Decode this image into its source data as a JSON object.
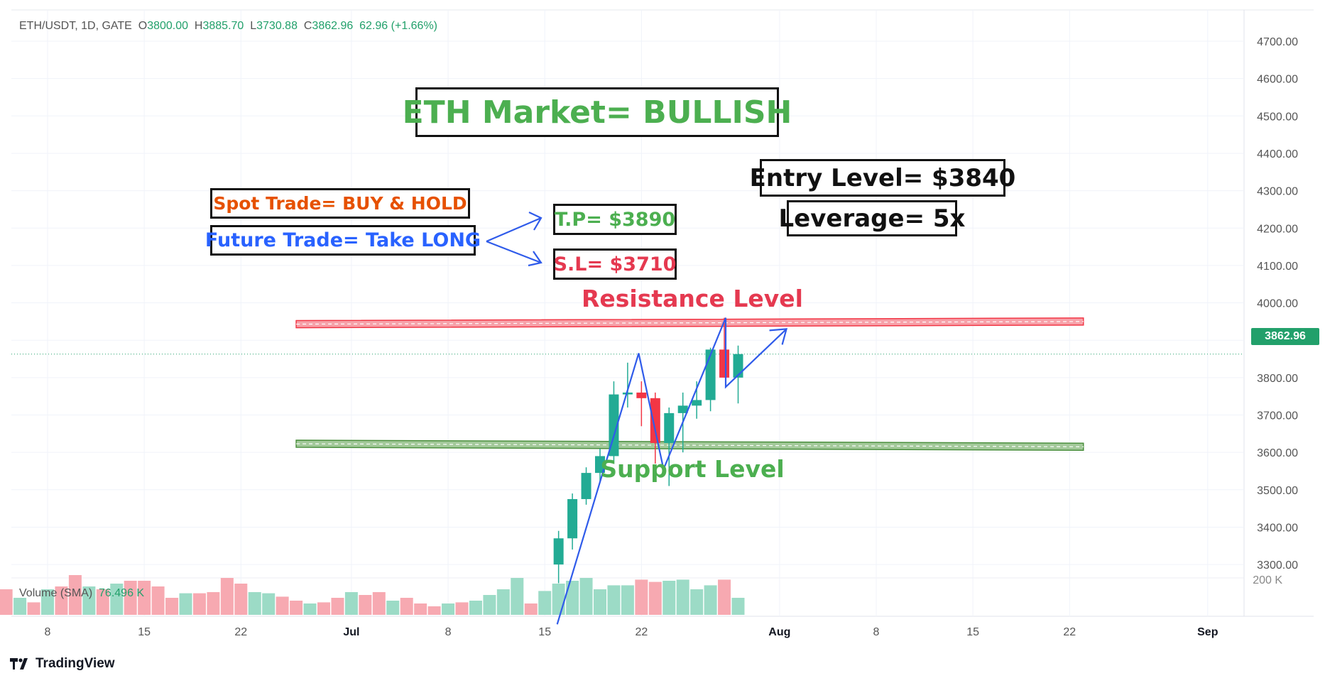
{
  "header": {
    "symbol": "ETH/USDT, 1D, GATE",
    "open_label": "O",
    "open": "3800.00",
    "high_label": "H",
    "high": "3885.70",
    "low_label": "L",
    "low": "3730.88",
    "close_label": "C",
    "close": "3862.96",
    "change": "62.96 (+1.66%)"
  },
  "annotations": {
    "market": "ETH Market= BULLISH",
    "spot": "Spot Trade= BUY & HOLD",
    "future": "Future Trade= Take LONG",
    "tp": "T.P= $3890",
    "sl": "S.L= $3710",
    "entry": "Entry Level= $3840",
    "leverage": "Leverage= 5x",
    "resistance": "Resistance Level",
    "support": "Support Level"
  },
  "volume_legend": {
    "label": "Volume (SMA)",
    "value": "76.496 K"
  },
  "last_price_tag": "3862.96",
  "brand": "TradingView",
  "colors": {
    "up": "#22ab94",
    "down": "#f23645",
    "annotation_green": "#4caf50",
    "annotation_orange": "#e65100",
    "annotation_blue": "#2962ff",
    "annotation_red": "#e53950",
    "pattern_line": "#2f5bea"
  },
  "chart_data": {
    "type": "candlestick",
    "symbol": "ETH/USDT",
    "timeframe": "1D",
    "exchange": "GATE",
    "y_axis_side": "right",
    "ylim": [
      3250,
      4750
    ],
    "y_ticks": [
      "4700.00",
      "4600.00",
      "4500.00",
      "4400.00",
      "4300.00",
      "4200.00",
      "4100.00",
      "4000.00",
      "3900.00",
      "3800.00",
      "3700.00",
      "3600.00",
      "3500.00",
      "3400.00",
      "3300.00"
    ],
    "x_ticks": [
      {
        "label": "8",
        "day": 8
      },
      {
        "label": "15",
        "day": 15
      },
      {
        "label": "22",
        "day": 22
      },
      {
        "label": "Jul",
        "day": 30
      },
      {
        "label": "8",
        "day": 37
      },
      {
        "label": "15",
        "day": 44
      },
      {
        "label": "22",
        "day": 51
      },
      {
        "label": "Aug",
        "day": 61
      },
      {
        "label": "8",
        "day": 68
      },
      {
        "label": "15",
        "day": 75
      },
      {
        "label": "22",
        "day": 82
      },
      {
        "label": "Sep",
        "day": 92
      }
    ],
    "candles": [
      {
        "day": 45,
        "o": 3300,
        "h": 3390,
        "l": 3250,
        "c": 3370
      },
      {
        "day": 46,
        "o": 3370,
        "h": 3490,
        "l": 3340,
        "c": 3475
      },
      {
        "day": 47,
        "o": 3475,
        "h": 3560,
        "l": 3460,
        "c": 3545
      },
      {
        "day": 48,
        "o": 3545,
        "h": 3610,
        "l": 3520,
        "c": 3590
      },
      {
        "day": 49,
        "o": 3590,
        "h": 3790,
        "l": 3570,
        "c": 3755
      },
      {
        "day": 50,
        "o": 3755,
        "h": 3840,
        "l": 3720,
        "c": 3760
      },
      {
        "day": 51,
        "o": 3760,
        "h": 3790,
        "l": 3670,
        "c": 3745
      },
      {
        "day": 52,
        "o": 3745,
        "h": 3760,
        "l": 3570,
        "c": 3625
      },
      {
        "day": 53,
        "o": 3625,
        "h": 3720,
        "l": 3510,
        "c": 3705
      },
      {
        "day": 54,
        "o": 3705,
        "h": 3760,
        "l": 3600,
        "c": 3725
      },
      {
        "day": 55,
        "o": 3725,
        "h": 3790,
        "l": 3690,
        "c": 3740
      },
      {
        "day": 56,
        "o": 3740,
        "h": 3880,
        "l": 3710,
        "c": 3875
      },
      {
        "day": 57,
        "o": 3875,
        "h": 3960,
        "l": 3800,
        "c": 3800
      },
      {
        "day": 58,
        "o": 3800,
        "h": 3885.7,
        "l": 3730.88,
        "c": 3862.96
      }
    ],
    "volume": {
      "label": "Volume (SMA)",
      "sma": "76.496 K",
      "axis_tick": "200 K",
      "bars": [
        {
          "day": 5,
          "v": 0.45,
          "up": false
        },
        {
          "day": 6,
          "v": 0.3,
          "up": true
        },
        {
          "day": 7,
          "v": 0.22,
          "up": false
        },
        {
          "day": 8,
          "v": 0.45,
          "up": true
        },
        {
          "day": 9,
          "v": 0.5,
          "up": false
        },
        {
          "day": 10,
          "v": 0.7,
          "up": false
        },
        {
          "day": 11,
          "v": 0.5,
          "up": true
        },
        {
          "day": 12,
          "v": 0.45,
          "up": false
        },
        {
          "day": 13,
          "v": 0.55,
          "up": true
        },
        {
          "day": 14,
          "v": 0.6,
          "up": false
        },
        {
          "day": 15,
          "v": 0.6,
          "up": false
        },
        {
          "day": 16,
          "v": 0.5,
          "up": false
        },
        {
          "day": 17,
          "v": 0.3,
          "up": false
        },
        {
          "day": 18,
          "v": 0.38,
          "up": true
        },
        {
          "day": 19,
          "v": 0.38,
          "up": false
        },
        {
          "day": 20,
          "v": 0.4,
          "up": false
        },
        {
          "day": 21,
          "v": 0.65,
          "up": false
        },
        {
          "day": 22,
          "v": 0.55,
          "up": false
        },
        {
          "day": 23,
          "v": 0.4,
          "up": true
        },
        {
          "day": 24,
          "v": 0.38,
          "up": true
        },
        {
          "day": 25,
          "v": 0.32,
          "up": false
        },
        {
          "day": 26,
          "v": 0.25,
          "up": false
        },
        {
          "day": 27,
          "v": 0.2,
          "up": true
        },
        {
          "day": 28,
          "v": 0.22,
          "up": false
        },
        {
          "day": 29,
          "v": 0.3,
          "up": false
        },
        {
          "day": 30,
          "v": 0.4,
          "up": true
        },
        {
          "day": 31,
          "v": 0.35,
          "up": false
        },
        {
          "day": 32,
          "v": 0.4,
          "up": false
        },
        {
          "day": 33,
          "v": 0.25,
          "up": true
        },
        {
          "day": 34,
          "v": 0.3,
          "up": false
        },
        {
          "day": 35,
          "v": 0.2,
          "up": false
        },
        {
          "day": 36,
          "v": 0.15,
          "up": false
        },
        {
          "day": 37,
          "v": 0.2,
          "up": true
        },
        {
          "day": 38,
          "v": 0.22,
          "up": false
        },
        {
          "day": 39,
          "v": 0.25,
          "up": true
        },
        {
          "day": 40,
          "v": 0.35,
          "up": true
        },
        {
          "day": 41,
          "v": 0.45,
          "up": true
        },
        {
          "day": 42,
          "v": 0.65,
          "up": true
        },
        {
          "day": 43,
          "v": 0.2,
          "up": false
        },
        {
          "day": 44,
          "v": 0.42,
          "up": true
        },
        {
          "day": 45,
          "v": 0.55,
          "up": true
        },
        {
          "day": 46,
          "v": 0.6,
          "up": true
        },
        {
          "day": 47,
          "v": 0.65,
          "up": true
        },
        {
          "day": 48,
          "v": 0.45,
          "up": true
        },
        {
          "day": 49,
          "v": 0.52,
          "up": true
        },
        {
          "day": 50,
          "v": 0.52,
          "up": true
        },
        {
          "day": 51,
          "v": 0.62,
          "up": false
        },
        {
          "day": 52,
          "v": 0.58,
          "up": false
        },
        {
          "day": 53,
          "v": 0.6,
          "up": true
        },
        {
          "day": 54,
          "v": 0.62,
          "up": true
        },
        {
          "day": 55,
          "v": 0.45,
          "up": true
        },
        {
          "day": 56,
          "v": 0.52,
          "up": true
        },
        {
          "day": 57,
          "v": 0.62,
          "up": false
        },
        {
          "day": 58,
          "v": 0.3,
          "up": true
        }
      ]
    },
    "levels": {
      "resistance": {
        "label": "Resistance Level",
        "price_start": 3943,
        "price_end": 3950,
        "day_start": 26,
        "day_end": 83
      },
      "support": {
        "label": "Support Level",
        "price_start": 3623,
        "price_end": 3615,
        "day_start": 26,
        "day_end": 83
      }
    },
    "last_price": 3862.96,
    "zigzag": [
      {
        "day": 44.9,
        "p": 3140
      },
      {
        "day": 50.8,
        "p": 3865
      },
      {
        "day": 52.6,
        "p": 3555
      },
      {
        "day": 57.1,
        "p": 3960
      },
      {
        "day": 57.1,
        "p": 3775
      },
      {
        "day": 61.5,
        "p": 3930
      }
    ]
  }
}
